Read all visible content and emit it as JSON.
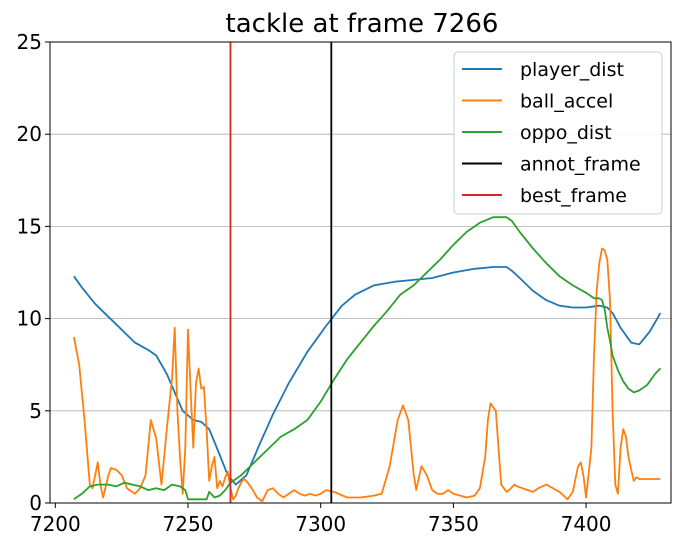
{
  "chart_data": {
    "type": "line",
    "title": "tackle at frame 7266",
    "xlim": [
      7198,
      7432
    ],
    "ylim": [
      0,
      25
    ],
    "xticks": [
      7200,
      7250,
      7300,
      7350,
      7400
    ],
    "yticks": [
      0,
      5,
      10,
      15,
      20,
      25
    ],
    "grid": "horizontal",
    "legend_position": "top-right",
    "series": [
      {
        "name": "player_dist",
        "color": "#1f77b4",
        "x": [
          7207,
          7210,
          7215,
          7220,
          7225,
          7230,
          7235,
          7238,
          7242,
          7245,
          7248,
          7252,
          7255,
          7258,
          7262,
          7265,
          7268,
          7272,
          7277,
          7282,
          7288,
          7295,
          7302,
          7308,
          7313,
          7320,
          7328,
          7335,
          7342,
          7350,
          7358,
          7365,
          7370,
          7372,
          7375,
          7380,
          7385,
          7390,
          7395,
          7400,
          7405,
          7408,
          7410,
          7413,
          7417,
          7420,
          7424,
          7428
        ],
        "y": [
          12.3,
          11.7,
          10.8,
          10.1,
          9.4,
          8.7,
          8.3,
          8.0,
          7.0,
          6.0,
          5.0,
          4.5,
          4.4,
          4.0,
          2.6,
          1.5,
          1.0,
          1.5,
          3.2,
          4.8,
          6.5,
          8.2,
          9.6,
          10.7,
          11.3,
          11.8,
          12.0,
          12.1,
          12.2,
          12.5,
          12.7,
          12.8,
          12.8,
          12.6,
          12.2,
          11.5,
          11.0,
          10.7,
          10.6,
          10.6,
          10.7,
          10.6,
          10.3,
          9.5,
          8.7,
          8.6,
          9.3,
          10.3
        ]
      },
      {
        "name": "ball_accel",
        "color": "#ff7f0e",
        "x": [
          7207,
          7209,
          7211,
          7213,
          7214,
          7216,
          7217,
          7218,
          7220,
          7221,
          7223,
          7225,
          7227,
          7228,
          7230,
          7232,
          7234,
          7236,
          7238,
          7240,
          7242,
          7244,
          7245,
          7246,
          7247,
          7248,
          7249,
          7250,
          7251,
          7252,
          7253,
          7254,
          7255,
          7256,
          7257,
          7258,
          7259,
          7260,
          7261,
          7262,
          7263,
          7264,
          7265,
          7266,
          7267,
          7268,
          7269,
          7270,
          7271,
          7272,
          7274,
          7276,
          7278,
          7280,
          7282,
          7284,
          7286,
          7288,
          7290,
          7292,
          7294,
          7296,
          7298,
          7300,
          7302,
          7305,
          7310,
          7315,
          7320,
          7323,
          7326,
          7329,
          7331,
          7333,
          7335,
          7336,
          7338,
          7340,
          7342,
          7344,
          7346,
          7348,
          7350,
          7355,
          7358,
          7360,
          7362,
          7363,
          7364,
          7366,
          7367,
          7368,
          7370,
          7371,
          7373,
          7374,
          7376,
          7378,
          7380,
          7382,
          7385,
          7390,
          7393,
          7395,
          7397,
          7398,
          7399,
          7400,
          7402,
          7403,
          7404,
          7405,
          7406,
          7407,
          7408,
          7409,
          7410,
          7411,
          7412,
          7413,
          7414,
          7415,
          7416,
          7417,
          7418,
          7419,
          7420,
          7422,
          7424,
          7426,
          7428
        ],
        "y": [
          9.0,
          7.5,
          4.5,
          1.0,
          0.8,
          2.2,
          1.0,
          0.3,
          1.5,
          1.9,
          1.8,
          1.5,
          0.8,
          0.7,
          0.5,
          0.8,
          1.5,
          4.5,
          3.5,
          1.0,
          4.0,
          6.8,
          9.5,
          5.0,
          2.5,
          0.5,
          3.0,
          9.4,
          6.0,
          3.0,
          6.5,
          7.3,
          6.2,
          6.3,
          4.0,
          1.2,
          2.0,
          2.5,
          0.8,
          1.2,
          0.9,
          1.4,
          1.7,
          0.8,
          0.2,
          0.4,
          0.8,
          1.1,
          1.3,
          1.2,
          0.8,
          0.3,
          0.1,
          0.7,
          0.8,
          0.5,
          0.3,
          0.5,
          0.7,
          0.5,
          0.4,
          0.5,
          0.4,
          0.5,
          0.7,
          0.6,
          0.3,
          0.3,
          0.4,
          0.5,
          2.0,
          4.5,
          5.3,
          4.5,
          1.6,
          0.7,
          2.0,
          1.5,
          0.7,
          0.5,
          0.5,
          0.7,
          0.5,
          0.3,
          0.4,
          0.8,
          2.5,
          4.5,
          5.4,
          5.0,
          3.0,
          1.0,
          0.6,
          0.7,
          1.0,
          0.9,
          0.8,
          0.7,
          0.6,
          0.8,
          1.0,
          0.6,
          0.2,
          0.6,
          2.0,
          2.2,
          1.5,
          0.3,
          3.0,
          8.0,
          11.5,
          13.0,
          13.8,
          13.7,
          13.2,
          11.0,
          5.0,
          1.0,
          0.5,
          3.0,
          4.0,
          3.6,
          2.5,
          1.8,
          1.2,
          1.4,
          1.3,
          1.3,
          1.3,
          1.3,
          1.3
        ]
      },
      {
        "name": "oppo_dist",
        "color": "#2ca02c",
        "x": [
          7207,
          7210,
          7213,
          7216,
          7220,
          7223,
          7226,
          7229,
          7232,
          7235,
          7238,
          7241,
          7244,
          7247,
          7249,
          7250,
          7252,
          7255,
          7257,
          7258,
          7260,
          7262,
          7264,
          7266,
          7270,
          7275,
          7280,
          7285,
          7290,
          7295,
          7300,
          7305,
          7310,
          7315,
          7320,
          7325,
          7330,
          7335,
          7340,
          7345,
          7350,
          7355,
          7360,
          7365,
          7370,
          7372,
          7375,
          7380,
          7385,
          7390,
          7395,
          7400,
          7403,
          7405,
          7406,
          7407,
          7408,
          7409,
          7410,
          7412,
          7414,
          7416,
          7418,
          7420,
          7423,
          7426,
          7428
        ],
        "y": [
          0.2,
          0.5,
          0.9,
          1.0,
          1.0,
          0.9,
          1.1,
          1.0,
          0.9,
          0.7,
          0.8,
          0.7,
          1.0,
          0.9,
          0.7,
          0.2,
          0.2,
          0.2,
          0.2,
          0.6,
          0.3,
          0.4,
          0.7,
          1.1,
          1.5,
          2.2,
          2.9,
          3.6,
          4.0,
          4.5,
          5.5,
          6.7,
          7.8,
          8.7,
          9.6,
          10.4,
          11.3,
          11.8,
          12.5,
          13.2,
          14.0,
          14.7,
          15.2,
          15.5,
          15.5,
          15.3,
          14.7,
          13.8,
          13.0,
          12.3,
          11.8,
          11.4,
          11.1,
          11.1,
          11.0,
          10.5,
          9.5,
          8.8,
          8.0,
          7.2,
          6.6,
          6.2,
          6.0,
          6.1,
          6.4,
          7.0,
          7.3
        ]
      }
    ],
    "vlines": [
      {
        "name": "annot_frame",
        "x": 7304,
        "color": "#000000"
      },
      {
        "name": "best_frame",
        "x": 7266,
        "color": "#d62728"
      }
    ],
    "legend": [
      {
        "label": "player_dist",
        "color": "#1f77b4"
      },
      {
        "label": "ball_accel",
        "color": "#ff7f0e"
      },
      {
        "label": "oppo_dist",
        "color": "#2ca02c"
      },
      {
        "label": "annot_frame",
        "color": "#000000"
      },
      {
        "label": "best_frame",
        "color": "#d62728"
      }
    ]
  }
}
